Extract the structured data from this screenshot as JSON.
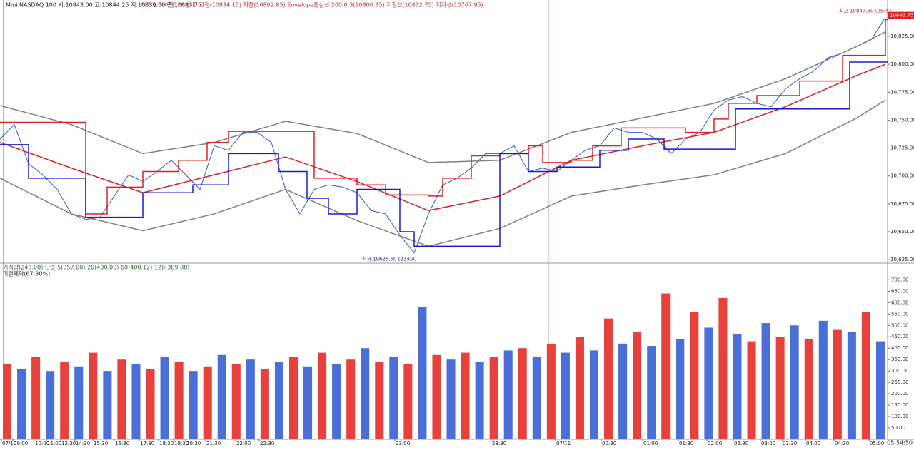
{
  "chart_data": [
    {
      "type": "line",
      "title": "Mini NASDAQ 100 시:10843.00 고:10844.25 저:10839.00 종:10843.75",
      "subtitle": "%기간 %이평(20봉내) 고점(10834.15) 저점(10802.85) Envelope중심선 200,0.3(10800.35) 저항선(10832.75) 지지선(10767.95)",
      "xlim": [
        0,
        124.3
      ],
      "ylim": [
        10620,
        10855
      ],
      "yticks": [
        {
          "value": 10625,
          "label": "10,625.00"
        },
        {
          "value": 10650,
          "label": "10,650.00"
        },
        {
          "value": 10675,
          "label": "10,675.00"
        },
        {
          "value": 10700,
          "label": "10,700.00"
        },
        {
          "value": 10725,
          "label": "10,725.00"
        },
        {
          "value": 10750,
          "label": "10,750.00"
        },
        {
          "value": 10775,
          "label": "10,775.00"
        },
        {
          "value": 10800,
          "label": "10,800.00"
        },
        {
          "value": 10825,
          "label": "10,825.00"
        }
      ],
      "xticks": [
        {
          "value": 0.2,
          "label": "07/10"
        },
        {
          "value": 1.8,
          "label": "09:00"
        },
        {
          "value": 4.8,
          "label": "10:00"
        },
        {
          "value": 6.5,
          "label": "11:00"
        },
        {
          "value": 8.5,
          "label": "12:30"
        },
        {
          "value": 10.5,
          "label": "14:30"
        },
        {
          "value": 13,
          "label": "15:30"
        },
        {
          "value": 16,
          "label": "16:30"
        },
        {
          "value": 19.5,
          "label": "17:30"
        },
        {
          "value": 22.2,
          "label": "18:30"
        },
        {
          "value": 24.3,
          "label": "19:30"
        },
        {
          "value": 26,
          "label": "20:30"
        },
        {
          "value": 28.8,
          "label": "21:30"
        },
        {
          "value": 33,
          "label": "22:00"
        },
        {
          "value": 36.3,
          "label": "22:30"
        },
        {
          "value": 55.3,
          "label": "23:00"
        },
        {
          "value": 68.8,
          "label": "23:30"
        },
        {
          "value": 77.8,
          "label": "07/11"
        },
        {
          "value": 84.2,
          "label": "00:30"
        },
        {
          "value": 90,
          "label": "01:00"
        },
        {
          "value": 95,
          "label": "01:30"
        },
        {
          "value": 99,
          "label": "02:00"
        },
        {
          "value": 102.7,
          "label": "02:30"
        },
        {
          "value": 106.5,
          "label": "03:00"
        },
        {
          "value": 109.5,
          "label": "03:30"
        },
        {
          "value": 112.8,
          "label": "04:00"
        },
        {
          "value": 116.8,
          "label": "04:30"
        },
        {
          "value": 121.7,
          "label": "05:00"
        }
      ],
      "series": [
        {
          "color": "#2a5bd7",
          "width": 1,
          "x": [
            0,
            2,
            4,
            6,
            8,
            10,
            12,
            14,
            16,
            18,
            20,
            22,
            24,
            26,
            28,
            30,
            32,
            34,
            36,
            38,
            40,
            42,
            44,
            46,
            48,
            50,
            52,
            54,
            56,
            58,
            60,
            62,
            64,
            66,
            68,
            70,
            72,
            74,
            76,
            78,
            80,
            82,
            84,
            86,
            88,
            90,
            92,
            94,
            96,
            98,
            100,
            102,
            104,
            106,
            108,
            110,
            112,
            114,
            116,
            118,
            120,
            122,
            124
          ],
          "values": [
            10733,
            10746,
            10711,
            10701,
            10688,
            10666,
            10661,
            10663,
            10682,
            10701,
            10695,
            10704,
            10714,
            10701,
            10688,
            10727,
            10723,
            10739,
            10739,
            10730,
            10688,
            10666,
            10688,
            10692,
            10690,
            10685,
            10669,
            10666,
            10647,
            10631,
            10666,
            10692,
            10698,
            10707,
            10720,
            10720,
            10727,
            10704,
            10707,
            10704,
            10714,
            10723,
            10727,
            10743,
            10739,
            10739,
            10733,
            10720,
            10733,
            10739,
            10759,
            10768,
            10771,
            10765,
            10762,
            10778,
            10787,
            10794,
            10806,
            10810,
            10816,
            10822,
            10842
          ]
        },
        {
          "color": "#808080",
          "width": 1.5,
          "x": [
            0,
            10,
            20,
            30,
            40,
            50,
            60,
            70,
            80,
            90,
            100,
            110,
            120,
            124
          ],
          "values": [
            10763,
            10746,
            10720,
            10730,
            10749,
            10738,
            10712,
            10714,
            10739,
            10752,
            10765,
            10787,
            10816,
            10829
          ]
        },
        {
          "color": "#e02020",
          "width": 1.5,
          "x": [
            0,
            10,
            20,
            30,
            40,
            50,
            60,
            70,
            80,
            90,
            100,
            110,
            120,
            124
          ],
          "values": [
            10730,
            10707,
            10685,
            10701,
            10717,
            10695,
            10669,
            10682,
            10714,
            10727,
            10739,
            10762,
            10790,
            10800
          ]
        },
        {
          "color": "#808080",
          "width": 1.5,
          "x": [
            0,
            10,
            20,
            30,
            40,
            50,
            60,
            70,
            80,
            90,
            100,
            110,
            120,
            124
          ],
          "values": [
            10698,
            10666,
            10651,
            10666,
            10688,
            10660,
            10637,
            10653,
            10682,
            10692,
            10701,
            10720,
            10752,
            10768
          ]
        },
        {
          "color": "#e02020",
          "width": 1.5,
          "step": true,
          "x": [
            0,
            12,
            15,
            20,
            25,
            29,
            32,
            44,
            50,
            54,
            60,
            62,
            66,
            70,
            74,
            76,
            80,
            83,
            87,
            96,
            100,
            102,
            106,
            112,
            118,
            124
          ],
          "values": [
            10748,
            10666,
            10690,
            10704,
            10714,
            10730,
            10740,
            10698,
            10692,
            10683,
            10682,
            10698,
            10718,
            10720,
            10727,
            10712,
            10714,
            10727,
            10743,
            10739,
            10751,
            10765,
            10772,
            10785,
            10808,
            10840
          ]
        },
        {
          "color": "#1a1ad0",
          "width": 1.5,
          "step": true,
          "x": [
            0,
            4,
            12,
            20,
            27,
            32,
            39,
            43,
            46,
            50,
            56,
            58,
            70,
            74,
            78,
            84,
            88,
            93,
            103,
            119,
            124
          ],
          "values": [
            10728,
            10698,
            10663,
            10685,
            10692,
            10720,
            10704,
            10680,
            10666,
            10688,
            10650,
            10637,
            10720,
            10704,
            10708,
            10723,
            10733,
            10724,
            10760,
            10802,
            10802
          ]
        }
      ],
      "annotations": [
        {
          "text": "최고 10847.50 (05:47)",
          "x": 117.5,
          "y": 10847.5
        },
        {
          "text": "최저 10625.50 (23:04)",
          "x": 50.7,
          "y": 10625.5
        }
      ],
      "last_label": {
        "text": "10843.75",
        "value": 10843.75
      },
      "clock": "05:54:50"
    },
    {
      "type": "bar",
      "title": "거래량(243.00)  단순 5(357.00)  20(400.00)  60(400.12)  120(389.88)",
      "subtitle": "미결제약(67.30%)",
      "ylim": [
        0,
        770
      ],
      "yticks": [
        {
          "value": 50,
          "label": "50.00"
        },
        {
          "value": 100,
          "label": "100.00"
        },
        {
          "value": 150,
          "label": "150.00"
        },
        {
          "value": 200,
          "label": "200.00"
        },
        {
          "value": 250,
          "label": "250.00"
        },
        {
          "value": 300,
          "label": "300.00"
        },
        {
          "value": 350,
          "label": "350.00"
        },
        {
          "value": 400,
          "label": "400.00"
        },
        {
          "value": 450,
          "label": "450.00"
        },
        {
          "value": 500,
          "label": "500.00"
        },
        {
          "value": 550,
          "label": "550.00"
        },
        {
          "value": 600,
          "label": "600.00"
        },
        {
          "value": 650,
          "label": "650.00"
        },
        {
          "value": 700,
          "label": "700.00"
        }
      ],
      "colors": [
        "#e8413c",
        "#4a6fd8"
      ],
      "values": [
        330,
        310,
        360,
        300,
        340,
        320,
        380,
        300,
        350,
        330,
        310,
        360,
        340,
        300,
        320,
        370,
        330,
        350,
        310,
        340,
        360,
        320,
        380,
        330,
        350,
        400,
        340,
        360,
        330,
        580,
        370,
        350,
        380,
        340,
        360,
        390,
        400,
        360,
        420,
        380,
        450,
        390,
        530,
        420,
        470,
        410,
        640,
        440,
        560,
        490,
        620,
        460,
        430,
        510,
        450,
        500,
        440,
        520,
        480,
        470,
        560,
        430
      ]
    }
  ]
}
